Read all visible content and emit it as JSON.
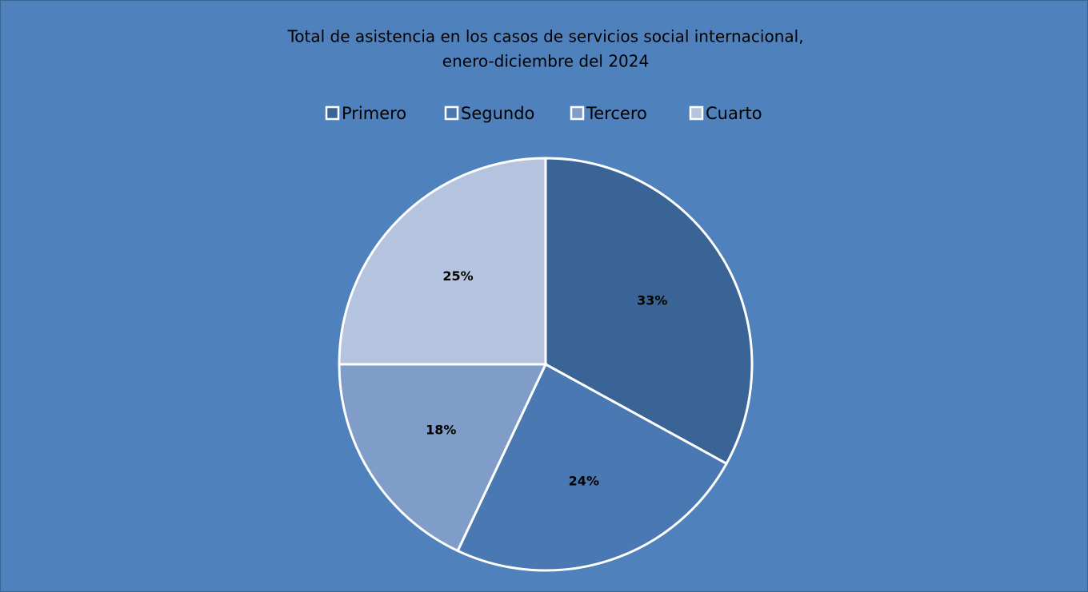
{
  "chart_data": {
    "type": "pie",
    "title": [
      "Total de asistencia en los casos de servicios social internacional,",
      "enero-diciembre del 2024"
    ],
    "categories": [
      "Primero",
      "Segundo",
      "Tercero",
      "Cuarto"
    ],
    "values": [
      33,
      24,
      18,
      25
    ],
    "value_labels": [
      "33%",
      "24%",
      "18%",
      "25%"
    ],
    "colors": [
      "#3b6496",
      "#4a78b2",
      "#7f9dc8",
      "#b4c3de"
    ],
    "legend": "top"
  }
}
